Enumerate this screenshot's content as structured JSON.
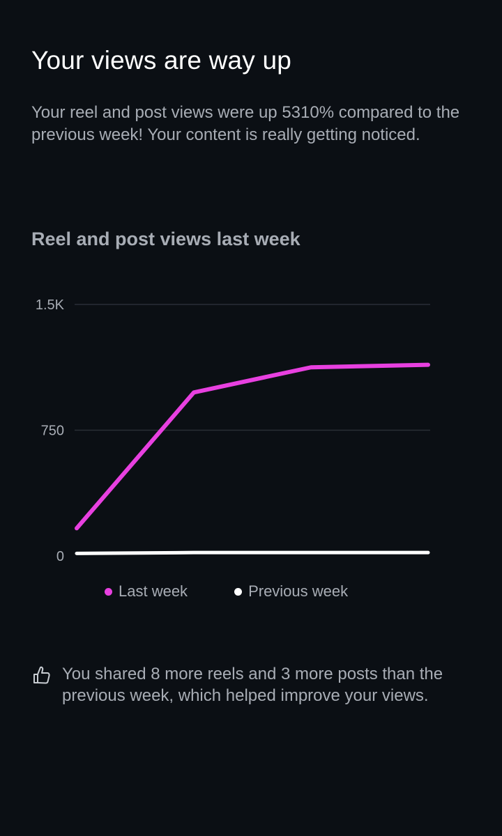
{
  "header": {
    "headline": "Your views are way up",
    "description": "Your reel and post views were up 5310% compared to the previous week! Your content is really getting noticed."
  },
  "chart_data": {
    "type": "line",
    "title": "Reel and post views last week",
    "xlabel": "",
    "ylabel": "",
    "x": [
      1,
      2,
      3,
      4
    ],
    "ylim": [
      0,
      1500
    ],
    "yticks": [
      {
        "value": 0,
        "label": "0"
      },
      {
        "value": 750,
        "label": "750"
      },
      {
        "value": 1500,
        "label": "1.5K"
      }
    ],
    "grid": true,
    "legend_position": "bottom",
    "series": [
      {
        "name": "Last week",
        "color": "#e840e0",
        "values": [
          165,
          975,
          1125,
          1140
        ]
      },
      {
        "name": "Previous week",
        "color": "#ffffff",
        "values": [
          15,
          20,
          20,
          20
        ]
      }
    ]
  },
  "insight": {
    "icon": "thumbs-up-icon",
    "text": "You shared 8 more reels and 3 more posts than the previous week, which helped improve your views."
  },
  "colors": {
    "background": "#0b0f14",
    "muted_text": "#a8adb5",
    "gridline": "#2a2f36"
  }
}
